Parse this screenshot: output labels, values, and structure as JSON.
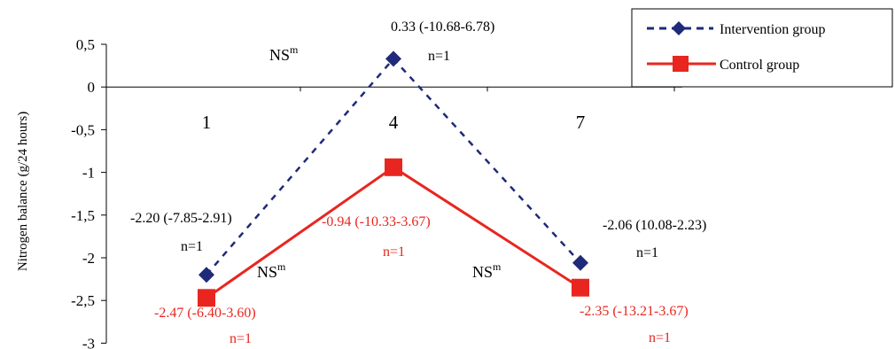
{
  "chart_data": {
    "type": "line",
    "ylabel": "Nitrogen balance (g/24 hours)",
    "xlabel": "",
    "title": "",
    "ylim": [
      -3,
      0.5
    ],
    "yticks": [
      0.5,
      0,
      -0.5,
      -1,
      -1.5,
      -2,
      -2.5,
      -3
    ],
    "ytick_labels": [
      "0,5",
      "0",
      "-0,5",
      "-1",
      "-1,5",
      "-2",
      "-2,5",
      "-3"
    ],
    "categories": [
      "1",
      "4",
      "7"
    ],
    "legend_position": "top-right",
    "grid": false,
    "series": [
      {
        "name": "Intervention group",
        "color": "#1f2a78",
        "line_style": "dashed",
        "marker": "diamond",
        "values": [
          -2.2,
          0.33,
          -2.06
        ],
        "labels": [
          "-2.20 (-7.85-2.91)",
          "0.33 (-10.68-6.78)",
          "-2.06 (10.08-2.23)"
        ],
        "n_labels": [
          "n=1",
          "n=1",
          "n=1"
        ]
      },
      {
        "name": "Control group",
        "color": "#e8261f",
        "line_style": "solid",
        "marker": "square",
        "values": [
          -2.47,
          -0.94,
          -2.35
        ],
        "labels": [
          "-2.47 (-6.40-3.60)",
          "-0.94 (-10.33-3.67)",
          "-2.35 (-13.21-3.67)"
        ],
        "n_labels": [
          "n=1",
          "n=1",
          "n=1"
        ]
      }
    ],
    "annotations": [
      "NS",
      "NS",
      "NS"
    ],
    "annotation_superscript": "m"
  }
}
